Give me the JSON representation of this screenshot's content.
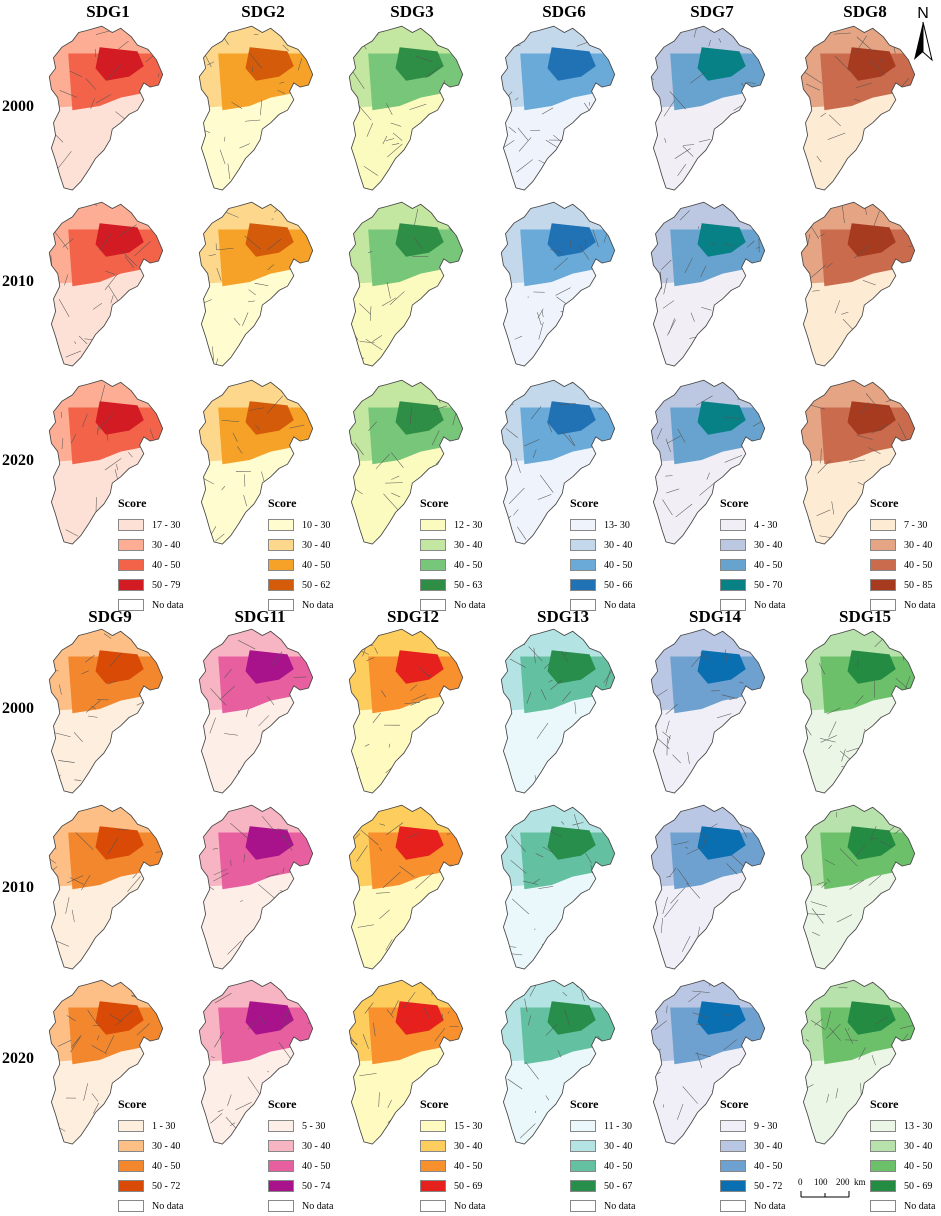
{
  "panels": [
    {
      "title": "SDG1",
      "palette": [
        "#fde0d6",
        "#fcad93",
        "#f2634a",
        "#d21b22"
      ],
      "legend": {
        "title": "Score",
        "classes": [
          "17 - 30",
          "30 - 40",
          "40 - 50",
          "50 - 79"
        ],
        "nodata": "No data"
      }
    },
    {
      "title": "SDG2",
      "palette": [
        "#fffcd0",
        "#fdd88c",
        "#f6a127",
        "#d35b0a"
      ],
      "legend": {
        "title": "Score",
        "classes": [
          "10 - 30",
          "30 - 40",
          "40 - 50",
          "50 - 62"
        ],
        "nodata": "No data"
      }
    },
    {
      "title": "SDG3",
      "palette": [
        "#fbfbc0",
        "#c3e6a0",
        "#78c679",
        "#2e8e45"
      ],
      "legend": {
        "title": "Score",
        "classes": [
          "12 - 30",
          "30 - 40",
          "40 - 50",
          "50 - 63"
        ],
        "nodata": "No data"
      }
    },
    {
      "title": "SDG6",
      "palette": [
        "#eff3fb",
        "#c4d8ec",
        "#6aaad8",
        "#2171b5"
      ],
      "legend": {
        "title": "Score",
        "classes": [
          "13- 30",
          "30 - 40",
          "40 - 50",
          "50 - 66"
        ],
        "nodata": "No data"
      }
    },
    {
      "title": "SDG7",
      "palette": [
        "#f1eef6",
        "#bcc8e2",
        "#67a3ce",
        "#078185"
      ],
      "legend": {
        "title": "Score",
        "classes": [
          "4 - 30",
          "30 - 40",
          "40 - 50",
          "50 - 70"
        ],
        "nodata": "No data"
      }
    },
    {
      "title": "SDG8",
      "palette": [
        "#fdebd4",
        "#e5a483",
        "#c96b4c",
        "#a63b20"
      ],
      "legend": {
        "title": "Score",
        "classes": [
          "7 - 30",
          "30 - 40",
          "40 - 50",
          "50 - 85"
        ],
        "nodata": "No data"
      }
    },
    {
      "title": "SDG9",
      "palette": [
        "#feeedd",
        "#fdbf86",
        "#f3872e",
        "#d94a06"
      ],
      "legend": {
        "title": "Score",
        "classes": [
          "1 - 30",
          "30 - 40",
          "40 - 50",
          "50 - 72"
        ],
        "nodata": "No data"
      }
    },
    {
      "title": "SDG11",
      "palette": [
        "#feeee8",
        "#f7b4c2",
        "#e85f9f",
        "#a8128a"
      ],
      "legend": {
        "title": "Score",
        "classes": [
          "5 - 30",
          "30 - 40",
          "40 - 50",
          "50 - 74"
        ],
        "nodata": "No data"
      }
    },
    {
      "title": "SDG12",
      "palette": [
        "#fefac0",
        "#fdcd5e",
        "#f7902d",
        "#e5201d"
      ],
      "legend": {
        "title": "Score",
        "classes": [
          "15 - 30",
          "30 - 40",
          "40 - 50",
          "50 - 69"
        ],
        "nodata": "No data"
      }
    },
    {
      "title": "SDG13",
      "palette": [
        "#eaf8fb",
        "#b4e3e3",
        "#63c0a1",
        "#278e4b"
      ],
      "legend": {
        "title": "Score",
        "classes": [
          "11 - 30",
          "30 - 40",
          "40 - 50",
          "50 - 67"
        ],
        "nodata": "No data"
      }
    },
    {
      "title": "SDG14",
      "palette": [
        "#f0eef7",
        "#bac7e4",
        "#6ea1cf",
        "#0a6fb0"
      ],
      "legend": {
        "title": "Score",
        "classes": [
          "9 - 30",
          "30 - 40",
          "40 - 50",
          "50 - 72"
        ],
        "nodata": "No data"
      }
    },
    {
      "title": "SDG15",
      "palette": [
        "#ebf6e6",
        "#b8e2ab",
        "#6cc06a",
        "#248b43"
      ],
      "legend": {
        "title": "Score",
        "classes": [
          "13 - 30",
          "30 - 40",
          "40 - 50",
          "50 - 69"
        ],
        "nodata": "No data"
      }
    }
  ],
  "years": [
    "2000",
    "2010",
    "2020"
  ],
  "north_label": "N",
  "scale": {
    "ticks": [
      "0",
      "100",
      "200"
    ],
    "unit": "km"
  }
}
